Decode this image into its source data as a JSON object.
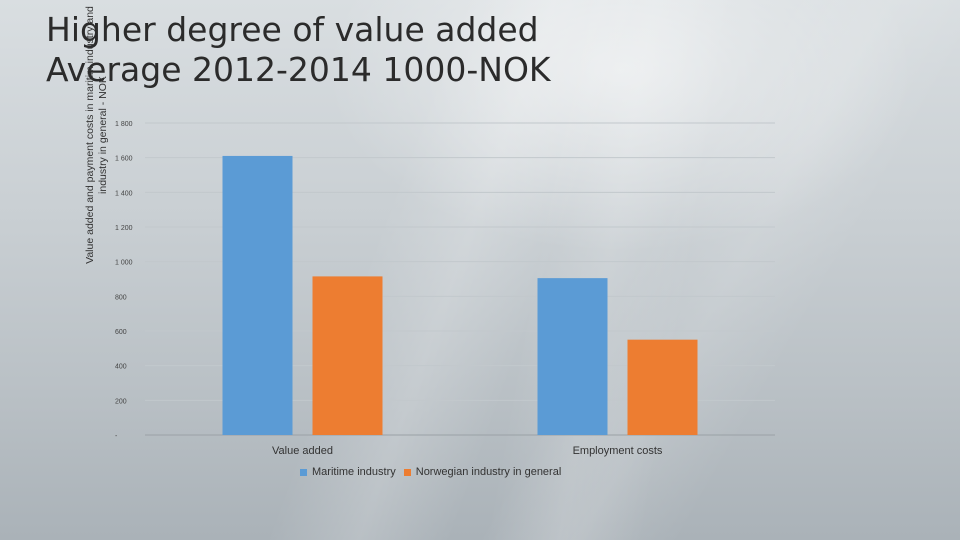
{
  "title_line1": "Higher degree of value added",
  "title_line2": "Average 2012-2014 1000-NOK",
  "chart_data": {
    "type": "bar",
    "categories": [
      "Value added",
      "Employment costs"
    ],
    "series": [
      {
        "name": "Maritime industry",
        "color": "#5b9bd5",
        "values": [
          1610,
          905
        ]
      },
      {
        "name": "Norwegian industry in general",
        "color": "#ed7d31",
        "values": [
          915,
          550
        ]
      }
    ],
    "ylabel_line1": "Value added and payment costs in maritim industry and",
    "ylabel_line2": "industry in general - NOK",
    "ylim": [
      0,
      1800
    ],
    "yticks": [
      {
        "value": 0,
        "label": "-"
      },
      {
        "value": 200,
        "label": "200"
      },
      {
        "value": 400,
        "label": "400"
      },
      {
        "value": 600,
        "label": "600"
      },
      {
        "value": 800,
        "label": "800"
      },
      {
        "value": 1000,
        "label": "1 000"
      },
      {
        "value": 1200,
        "label": "1 200"
      },
      {
        "value": 1400,
        "label": "1 400"
      },
      {
        "value": 1600,
        "label": "1 600"
      },
      {
        "value": 1800,
        "label": "1 800"
      }
    ],
    "grid": true,
    "legend_position": "bottom"
  }
}
